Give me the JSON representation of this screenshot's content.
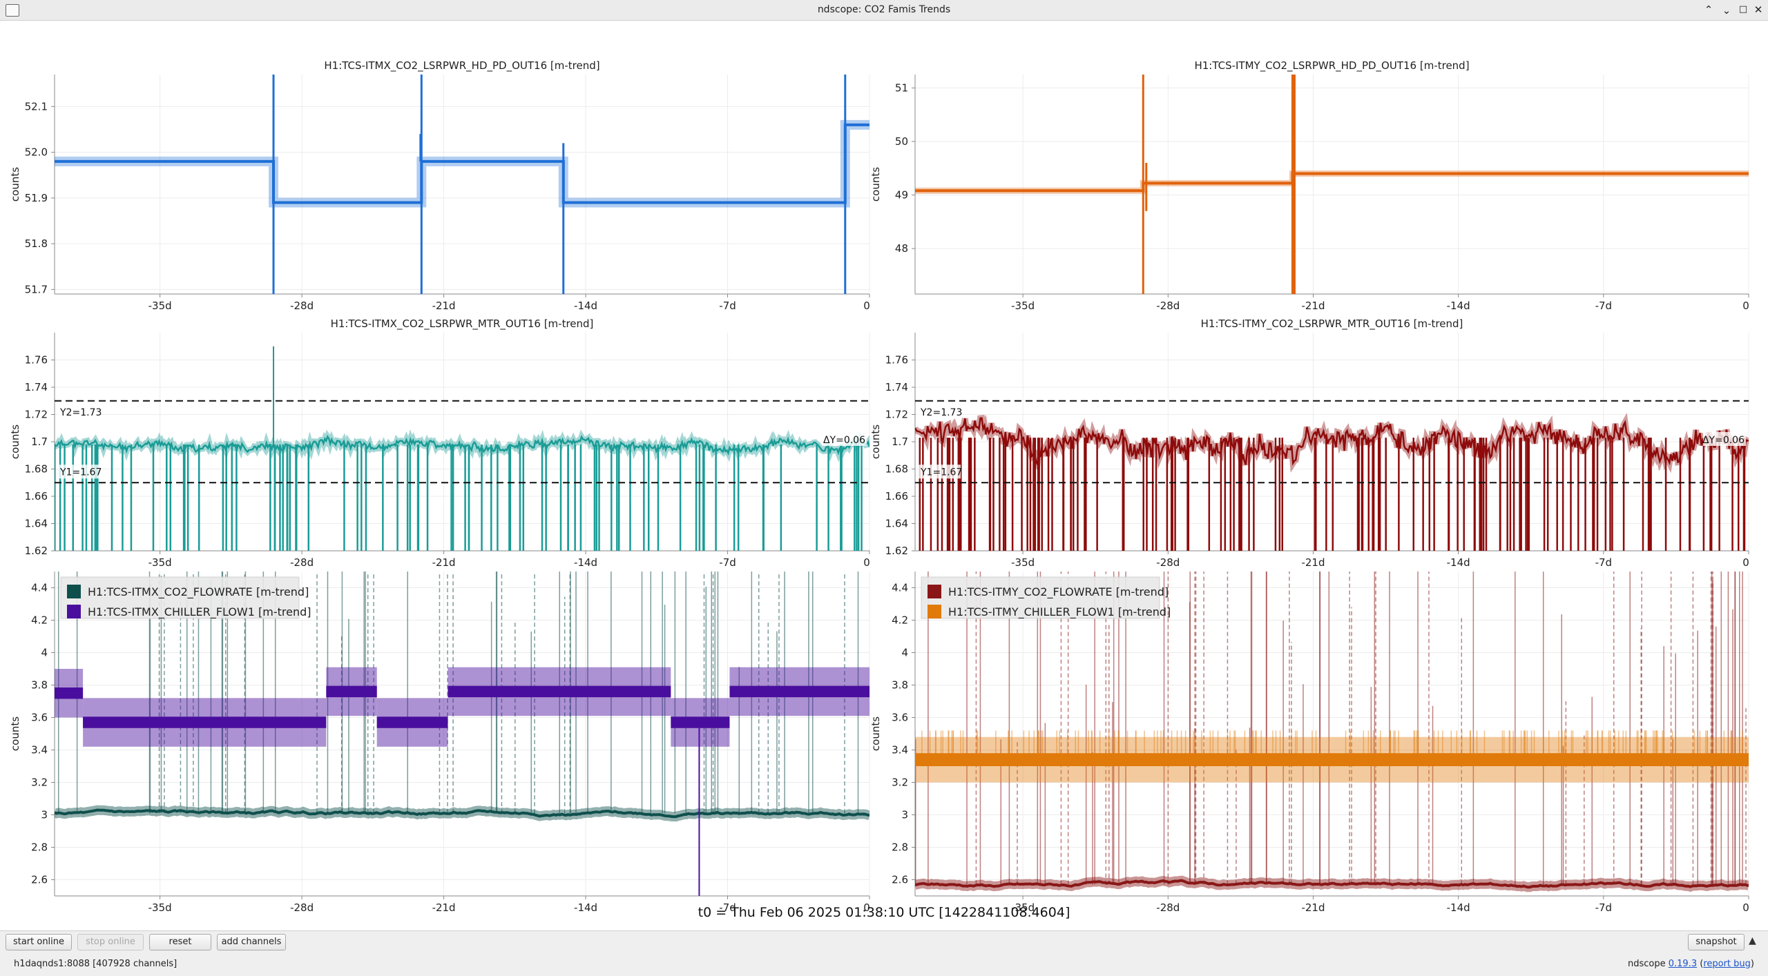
{
  "window": {
    "title": "ndscope: CO2 Famis Trends"
  },
  "t0": "t0 = Thu Feb 06 2025 01:38:10 UTC [1422841108.4604]",
  "toolbar": {
    "start_online": "start online",
    "stop_online": "stop online",
    "reset": "reset",
    "add_channels": "add channels",
    "snapshot": "snapshot"
  },
  "status": {
    "server": "h1daqnds1:8088  [407928 channels]"
  },
  "version": {
    "prefix": "ndscope ",
    "number": "0.19.3",
    "report_bug": "report bug"
  },
  "colors": {
    "itmx_pd": "#1f6fd6",
    "itmy_pd": "#e0620b",
    "itmx_mtr": "#1a9c96",
    "itmy_mtr": "#8e0b0b",
    "itmx_flowrate": "#0e4f4c",
    "itmx_chiller": "#4a0e9e",
    "itmy_flowrate": "#8a1717",
    "itmy_chiller": "#e07a0a"
  },
  "chart_data": [
    {
      "id": "itmx_pd",
      "type": "line",
      "title": "H1:TCS-ITMX_CO2_LSRPWR_HD_PD_OUT16 [m-trend]",
      "ylabel": "counts",
      "x_ticks": [
        "-35d",
        "-28d",
        "-21d",
        "-14d",
        "-7d",
        "0"
      ],
      "xlim": [
        -40.2,
        0
      ],
      "ylim": [
        51.69,
        52.17
      ],
      "y_ticks": [
        51.7,
        51.8,
        51.9,
        52.0,
        52.1
      ],
      "y_tick_labels": [
        "51.7",
        "51.8",
        "51.9",
        "52.0",
        "52.1"
      ],
      "series": [
        {
          "color": "#1f6fd6",
          "band": 0.006,
          "x": [
            -40.2,
            -29.4,
            -29.4,
            -22.1,
            -22.1,
            -15.1,
            -15.1,
            -1.2,
            -1.2,
            0
          ],
          "y": [
            51.98,
            51.98,
            51.89,
            51.89,
            51.98,
            51.98,
            51.89,
            51.89,
            52.06,
            52.06
          ],
          "spikes": [
            [
              -29.4,
              51.69,
              52.17
            ],
            [
              -22.1,
              51.69,
              52.17
            ],
            [
              -15.1,
              51.69,
              52.02
            ],
            [
              -1.2,
              51.69,
              52.17
            ],
            [
              -22.15,
              51.98,
              52.04
            ]
          ]
        }
      ]
    },
    {
      "id": "itmy_pd",
      "type": "line",
      "title": "H1:TCS-ITMY_CO2_LSRPWR_HD_PD_OUT16 [m-trend]",
      "ylabel": "counts",
      "x_ticks": [
        "-35d",
        "-28d",
        "-21d",
        "-14d",
        "-7d",
        "0"
      ],
      "xlim": [
        -40.2,
        0
      ],
      "ylim": [
        47.15,
        51.25
      ],
      "y_ticks": [
        48,
        49,
        50,
        51
      ],
      "y_tick_labels": [
        "48",
        "49",
        "50",
        "51"
      ],
      "series": [
        {
          "color": "#e0620b",
          "band": 0.02,
          "x": [
            -40.2,
            -29.2,
            -29.2,
            -22.0,
            -22.0,
            0
          ],
          "y": [
            49.08,
            49.08,
            49.22,
            49.22,
            49.4,
            49.4
          ],
          "spikes": [
            [
              -29.2,
              47.15,
              51.25
            ],
            [
              -22.0,
              47.15,
              51.25
            ],
            [
              -21.9,
              47.15,
              51.25
            ],
            [
              -29.05,
              48.7,
              49.6
            ]
          ]
        }
      ]
    },
    {
      "id": "itmx_mtr",
      "type": "line",
      "title": "H1:TCS-ITMX_CO2_LSRPWR_MTR_OUT16 [m-trend]",
      "ylabel": "counts",
      "x_ticks": [
        "-35d",
        "-28d",
        "-21d",
        "-14d",
        "-7d",
        "0"
      ],
      "xlim": [
        -40.2,
        0
      ],
      "ylim": [
        1.62,
        1.78
      ],
      "y_ticks": [
        1.62,
        1.64,
        1.66,
        1.68,
        1.7,
        1.72,
        1.74,
        1.76
      ],
      "y_tick_labels": [
        "1.62",
        "1.64",
        "1.66",
        "1.68",
        "1.7",
        "1.72",
        "1.74",
        "1.76"
      ],
      "cursors": {
        "y1": 1.67,
        "y2": 1.73,
        "y1_label": "Y1=1.67",
        "y2_label": "Y2=1.73",
        "dy_label": "ΔY=0.06"
      },
      "series": [
        {
          "color": "#1a9c96",
          "mean": 1.698,
          "noise": 0.004,
          "dropouts": 95,
          "spike_up": [
            -29.4,
            1.77
          ],
          "seed": 11
        }
      ]
    },
    {
      "id": "itmy_mtr",
      "type": "line",
      "title": "H1:TCS-ITMY_CO2_LSRPWR_MTR_OUT16 [m-trend]",
      "ylabel": "counts",
      "x_ticks": [
        "-35d",
        "-28d",
        "-21d",
        "-14d",
        "-7d",
        "0"
      ],
      "xlim": [
        -40.2,
        0
      ],
      "ylim": [
        1.62,
        1.78
      ],
      "y_ticks": [
        1.62,
        1.64,
        1.66,
        1.68,
        1.7,
        1.72,
        1.74,
        1.76
      ],
      "y_tick_labels": [
        "1.62",
        "1.64",
        "1.66",
        "1.68",
        "1.7",
        "1.72",
        "1.74",
        "1.76"
      ],
      "cursors": {
        "y1": 1.67,
        "y2": 1.73,
        "y1_label": "Y1=1.67",
        "y2_label": "Y2=1.73",
        "dy_label": "ΔY=0.06"
      },
      "series": [
        {
          "color": "#8e0b0b",
          "mean": 1.703,
          "noise": 0.012,
          "dropouts": 140,
          "seed": 23
        }
      ]
    },
    {
      "id": "itmx_flow",
      "type": "line",
      "ylabel": "counts",
      "x_ticks": [
        "-35d",
        "-28d",
        "-21d",
        "-14d",
        "-7d",
        "0"
      ],
      "xlim": [
        -40.2,
        0
      ],
      "ylim": [
        2.5,
        4.5
      ],
      "y_ticks": [
        2.6,
        2.8,
        3,
        3.2,
        3.4,
        3.6,
        3.8,
        4,
        4.2,
        4.4
      ],
      "y_tick_labels": [
        "2.6",
        "2.8",
        "3",
        "3.2",
        "3.4",
        "3.6",
        "3.8",
        "4",
        "4.2",
        "4.4"
      ],
      "legend": [
        "H1:TCS-ITMX_CO2_FLOWRATE [m-trend]",
        "H1:TCS-ITMX_CHILLER_FLOW1 [m-trend]"
      ],
      "series": [
        {
          "name": "H1:TCS-ITMX_CO2_FLOWRATE [m-trend]",
          "color": "#0e4f4c",
          "mean": 3.01,
          "spikes": 70,
          "seed": 5
        },
        {
          "name": "H1:TCS-ITMX_CHILLER_FLOW1 [m-trend]",
          "color": "#4a0e9e",
          "steps": [
            [
              -40.2,
              -38.8,
              3.75
            ],
            [
              -38.8,
              -26.8,
              3.57
            ],
            [
              -26.8,
              -24.3,
              3.76
            ],
            [
              -24.3,
              -20.8,
              3.57
            ],
            [
              -20.8,
              -9.8,
              3.76
            ],
            [
              -9.8,
              -6.9,
              3.57
            ],
            [
              -6.9,
              0,
              3.76
            ]
          ],
          "drop": [
            -8.4,
            2.5
          ]
        }
      ]
    },
    {
      "id": "itmy_flow",
      "type": "line",
      "ylabel": "counts",
      "x_ticks": [
        "-35d",
        "-28d",
        "-21d",
        "-14d",
        "-7d",
        "0"
      ],
      "xlim": [
        -40.2,
        0
      ],
      "ylim": [
        2.5,
        4.5
      ],
      "y_ticks": [
        2.6,
        2.8,
        3,
        3.2,
        3.4,
        3.6,
        3.8,
        4,
        4.2,
        4.4
      ],
      "y_tick_labels": [
        "2.6",
        "2.8",
        "3",
        "3.2",
        "3.4",
        "3.6",
        "3.8",
        "4",
        "4.2",
        "4.4"
      ],
      "legend": [
        "H1:TCS-ITMY_CO2_FLOWRATE [m-trend]",
        "H1:TCS-ITMY_CHILLER_FLOW1 [m-trend]"
      ],
      "series": [
        {
          "name": "H1:TCS-ITMY_CO2_FLOWRATE [m-trend]",
          "color": "#8a1717",
          "mean": 2.57,
          "spikes": 85,
          "seed": 9
        },
        {
          "name": "H1:TCS-ITMY_CHILLER_FLOW1 [m-trend]",
          "color": "#e07a0a",
          "mean": 3.34
        }
      ]
    }
  ]
}
